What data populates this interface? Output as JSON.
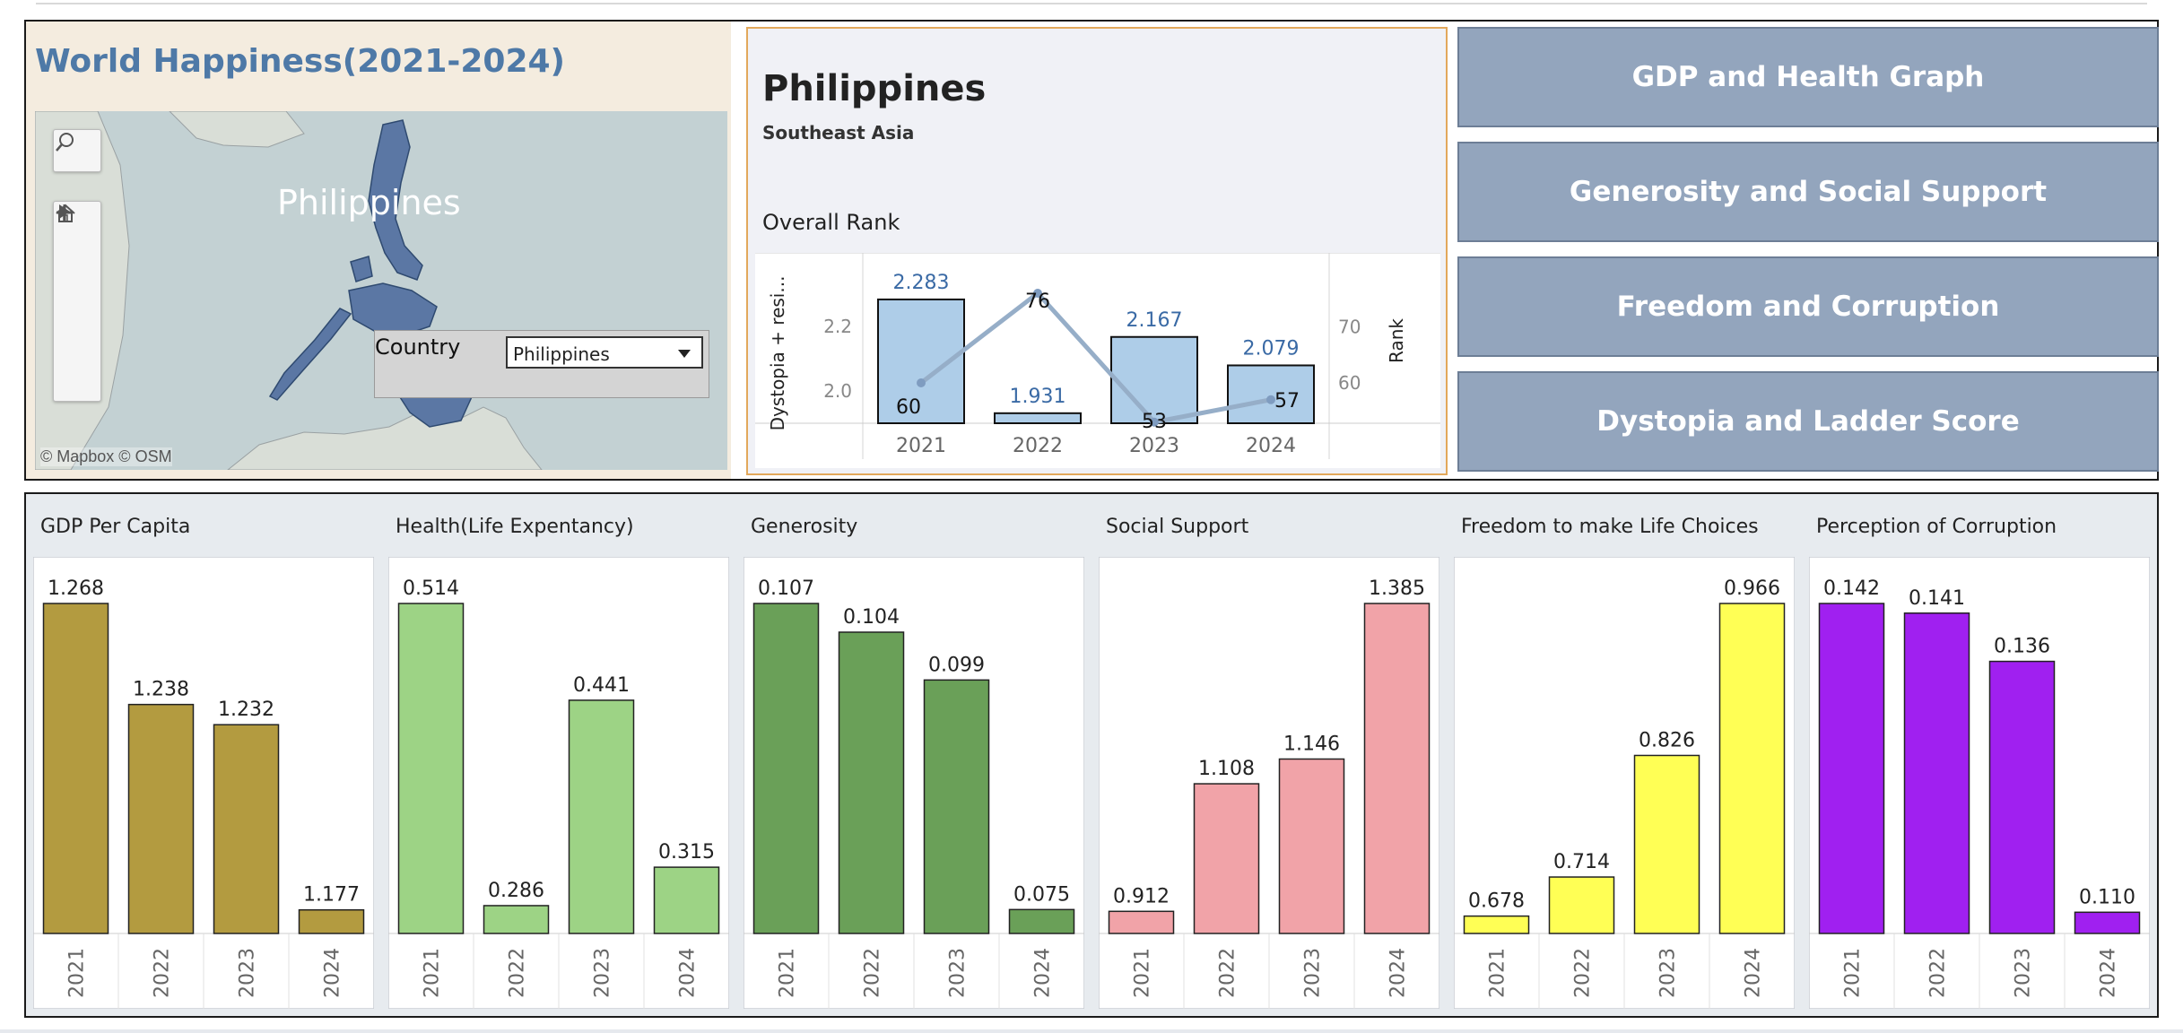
{
  "app": {
    "title": "World Happiness(2021-2024)"
  },
  "map": {
    "country_label": "Philippines",
    "attribution": "© Mapbox  © OSM",
    "highlight_color": "#5b77a4"
  },
  "filter": {
    "label": "Country",
    "value": "Philippines"
  },
  "detail": {
    "country": "Philippines",
    "region": "Southeast Asia",
    "section_title": "Overall Rank"
  },
  "nav": {
    "buttons": [
      {
        "label": "GDP and Health Graph"
      },
      {
        "label": "Generosity and Social Support"
      },
      {
        "label": "Freedom and Corruption"
      },
      {
        "label": "Dystopia and Ladder Score"
      }
    ]
  },
  "chart_data": [
    {
      "type": "bar",
      "categories": [
        "2021",
        "2022",
        "2023",
        "2024"
      ],
      "series": [
        {
          "name": "Dystopia + residual",
          "axis": "left",
          "chart": "bar",
          "values": [
            2.283,
            1.931,
            2.167,
            2.079
          ],
          "labels": [
            "2.283",
            "1.931",
            "2.167",
            "2.079"
          ],
          "color": "#aecde8"
        },
        {
          "name": "Rank",
          "axis": "right",
          "chart": "line",
          "values": [
            60,
            76,
            53,
            57
          ],
          "labels": [
            "60",
            "76",
            "53",
            "57"
          ],
          "color": "#96aec8"
        }
      ],
      "ylabel": "Dystopia + resi...",
      "y2label": "Rank",
      "ylim": [
        1.9,
        2.33
      ],
      "yticks": [
        "2.0",
        "2.2"
      ],
      "y2lim": [
        52,
        76
      ],
      "y2ticks": [
        "60",
        "70"
      ]
    },
    {
      "type": "bar",
      "title": "GDP Per Capita",
      "categories": [
        "2021",
        "2022",
        "2023",
        "2024"
      ],
      "values": [
        1.268,
        1.238,
        1.232,
        1.177
      ],
      "labels": [
        "1.268",
        "1.238",
        "1.232",
        "1.177"
      ],
      "ylim": [
        1.17,
        1.268
      ],
      "color": "#b39b40"
    },
    {
      "type": "bar",
      "title": "Health(Life Expentancy)",
      "categories": [
        "2021",
        "2022",
        "2023",
        "2024"
      ],
      "values": [
        0.514,
        0.286,
        0.441,
        0.315
      ],
      "labels": [
        "0.514",
        "0.286",
        "0.441",
        "0.315"
      ],
      "ylim": [
        0.265,
        0.514
      ],
      "color": "#9dd385"
    },
    {
      "type": "bar",
      "title": "Generosity",
      "categories": [
        "2021",
        "2022",
        "2023",
        "2024"
      ],
      "values": [
        0.107,
        0.104,
        0.099,
        0.075
      ],
      "labels": [
        "0.107",
        "0.104",
        "0.099",
        "0.075"
      ],
      "ylim": [
        0.0725,
        0.107
      ],
      "color": "#6aa058"
    },
    {
      "type": "bar",
      "title": "Social Support",
      "categories": [
        "2021",
        "2022",
        "2023",
        "2024"
      ],
      "values": [
        0.912,
        1.108,
        1.146,
        1.385
      ],
      "labels": [
        "0.912",
        "1.108",
        "1.146",
        "1.385"
      ],
      "ylim": [
        0.878,
        1.385
      ],
      "color": "#f1a3a8"
    },
    {
      "type": "bar",
      "title": "Freedom to make Life Choices",
      "categories": [
        "2021",
        "2022",
        "2023",
        "2024"
      ],
      "values": [
        0.678,
        0.714,
        0.826,
        0.966
      ],
      "labels": [
        "0.678",
        "0.714",
        "0.826",
        "0.966"
      ],
      "ylim": [
        0.662,
        0.966
      ],
      "color": "#ffff55"
    },
    {
      "type": "bar",
      "title": "Perception of Corruption",
      "categories": [
        "2021",
        "2022",
        "2023",
        "2024"
      ],
      "values": [
        0.142,
        0.141,
        0.136,
        0.11
      ],
      "labels": [
        "0.142",
        "0.141",
        "0.136",
        "0.110"
      ],
      "ylim": [
        0.1078,
        0.142
      ],
      "color": "#a020f0"
    }
  ]
}
